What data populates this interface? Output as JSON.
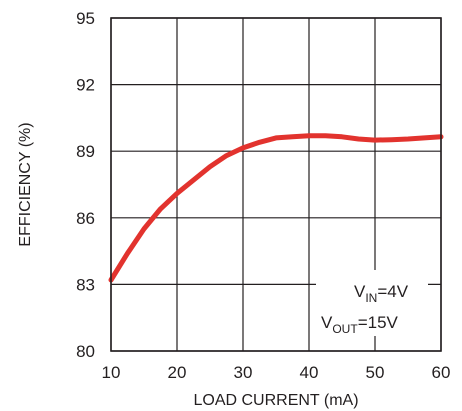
{
  "chart_data": {
    "type": "line",
    "xlabel": "LOAD CURRENT (mA)",
    "ylabel": "EFFICIENCY (%)",
    "xlim": [
      10,
      60
    ],
    "ylim": [
      80,
      95
    ],
    "x_ticks": [
      10,
      20,
      30,
      40,
      50,
      60
    ],
    "y_ticks": [
      80,
      83,
      86,
      89,
      92,
      95
    ],
    "grid": true,
    "series": [
      {
        "color": "#e2332e",
        "x": [
          10,
          12.5,
          15,
          17.5,
          20,
          22.5,
          25,
          27.5,
          30,
          32.5,
          35,
          37.5,
          40,
          42.5,
          45,
          47.5,
          50,
          52.5,
          55,
          57.5,
          60
        ],
        "y": [
          83.2,
          84.4,
          85.5,
          86.4,
          87.1,
          87.7,
          88.3,
          88.8,
          89.15,
          89.4,
          89.6,
          89.65,
          89.7,
          89.7,
          89.65,
          89.55,
          89.5,
          89.52,
          89.55,
          89.6,
          89.65
        ]
      }
    ],
    "annotations": [
      {
        "main": "V",
        "sub": "IN",
        "rest": "=4V"
      },
      {
        "main": "V",
        "sub": "OUT",
        "rest": "=15V"
      }
    ]
  }
}
